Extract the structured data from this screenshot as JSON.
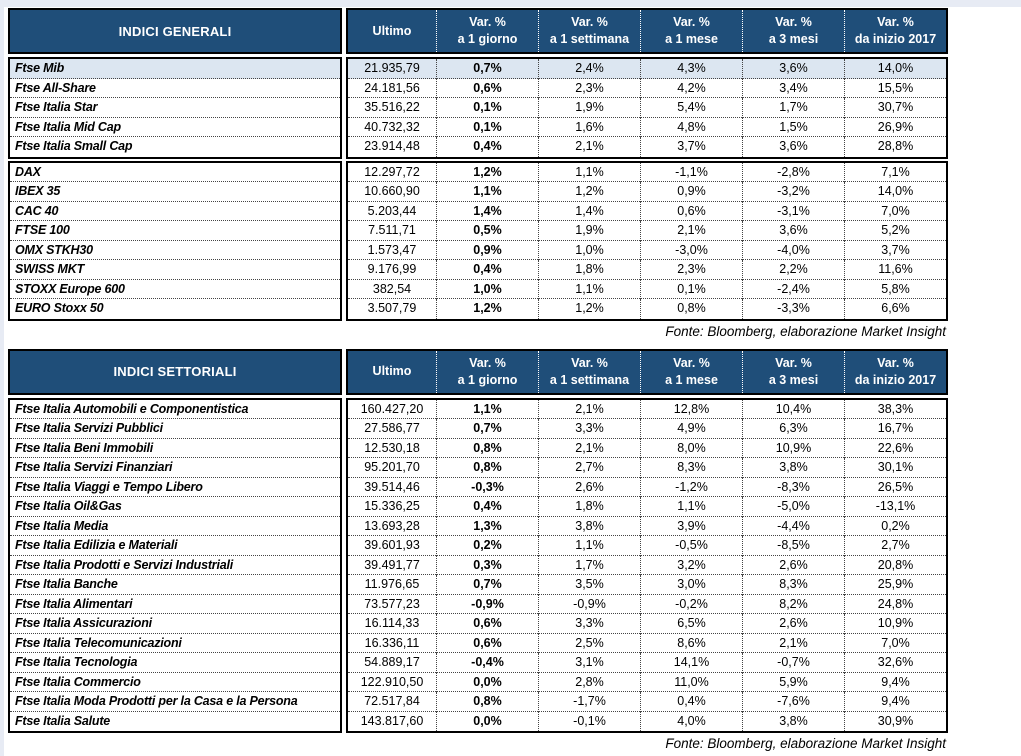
{
  "colors": {
    "header_bg": "#1F4E79",
    "header_text": "#FFFFFF",
    "highlight_bg": "#DCE6F1",
    "page_edge": "#E7EBF4",
    "border": "#000000"
  },
  "columns": [
    {
      "top": "Ultimo",
      "bottom": ""
    },
    {
      "top": "Var. %",
      "bottom": "a 1 giorno"
    },
    {
      "top": "Var. %",
      "bottom": "a 1 settimana"
    },
    {
      "top": "Var. %",
      "bottom": "a 1 mese"
    },
    {
      "top": "Var. %",
      "bottom": "a 3 mesi"
    },
    {
      "top": "Var. %",
      "bottom": "da inizio 2017"
    }
  ],
  "tables": [
    {
      "title": "INDICI GENERALI",
      "fonte": "Fonte: Bloomberg, elaborazione Market Insight",
      "sections": [
        {
          "rows": [
            {
              "label": "Ftse Mib",
              "highlight": true,
              "values": [
                "21.935,79",
                "0,7%",
                "2,4%",
                "4,3%",
                "3,6%",
                "14,0%"
              ]
            },
            {
              "label": "Ftse All-Share",
              "highlight": false,
              "values": [
                "24.181,56",
                "0,6%",
                "2,3%",
                "4,2%",
                "3,4%",
                "15,5%"
              ]
            },
            {
              "label": "Ftse Italia Star",
              "highlight": false,
              "values": [
                "35.516,22",
                "0,1%",
                "1,9%",
                "5,4%",
                "1,7%",
                "30,7%"
              ]
            },
            {
              "label": "Ftse Italia Mid Cap",
              "highlight": false,
              "values": [
                "40.732,32",
                "0,1%",
                "1,6%",
                "4,8%",
                "1,5%",
                "26,9%"
              ]
            },
            {
              "label": "Ftse Italia Small Cap",
              "highlight": false,
              "values": [
                "23.914,48",
                "0,4%",
                "2,1%",
                "3,7%",
                "3,6%",
                "28,8%"
              ]
            }
          ]
        },
        {
          "rows": [
            {
              "label": "DAX",
              "highlight": false,
              "values": [
                "12.297,72",
                "1,2%",
                "1,1%",
                "-1,1%",
                "-2,8%",
                "7,1%"
              ]
            },
            {
              "label": "IBEX 35",
              "highlight": false,
              "values": [
                "10.660,90",
                "1,1%",
                "1,2%",
                "0,9%",
                "-3,2%",
                "14,0%"
              ]
            },
            {
              "label": "CAC 40",
              "highlight": false,
              "values": [
                "5.203,44",
                "1,4%",
                "1,4%",
                "0,6%",
                "-3,1%",
                "7,0%"
              ]
            },
            {
              "label": "FTSE 100",
              "highlight": false,
              "values": [
                "7.511,71",
                "0,5%",
                "1,9%",
                "2,1%",
                "3,6%",
                "5,2%"
              ]
            },
            {
              "label": "OMX STKH30",
              "highlight": false,
              "values": [
                "1.573,47",
                "0,9%",
                "1,0%",
                "-3,0%",
                "-4,0%",
                "3,7%"
              ]
            },
            {
              "label": "SWISS MKT",
              "highlight": false,
              "values": [
                "9.176,99",
                "0,4%",
                "1,8%",
                "2,3%",
                "2,2%",
                "11,6%"
              ]
            },
            {
              "label": "STOXX Europe 600",
              "highlight": false,
              "values": [
                "382,54",
                "1,0%",
                "1,1%",
                "0,1%",
                "-2,4%",
                "5,8%"
              ]
            },
            {
              "label": "EURO Stoxx 50",
              "highlight": false,
              "values": [
                "3.507,79",
                "1,2%",
                "1,2%",
                "0,8%",
                "-3,3%",
                "6,6%"
              ]
            }
          ]
        }
      ]
    },
    {
      "title": "INDICI SETTORIALI",
      "fonte": "Fonte: Bloomberg, elaborazione Market Insight",
      "sections": [
        {
          "rows": [
            {
              "label": "Ftse Italia Automobili e Componentistica",
              "highlight": false,
              "values": [
                "160.427,20",
                "1,1%",
                "2,1%",
                "12,8%",
                "10,4%",
                "38,3%"
              ]
            },
            {
              "label": "Ftse Italia Servizi Pubblici",
              "highlight": false,
              "values": [
                "27.586,77",
                "0,7%",
                "3,3%",
                "4,9%",
                "6,3%",
                "16,7%"
              ]
            },
            {
              "label": "Ftse Italia Beni Immobili",
              "highlight": false,
              "values": [
                "12.530,18",
                "0,8%",
                "2,1%",
                "8,0%",
                "10,9%",
                "22,6%"
              ]
            },
            {
              "label": "Ftse Italia Servizi Finanziari",
              "highlight": false,
              "values": [
                "95.201,70",
                "0,8%",
                "2,7%",
                "8,3%",
                "3,8%",
                "30,1%"
              ]
            },
            {
              "label": "Ftse Italia Viaggi e Tempo Libero",
              "highlight": false,
              "values": [
                "39.514,46",
                "-0,3%",
                "2,6%",
                "-1,2%",
                "-8,3%",
                "26,5%"
              ]
            },
            {
              "label": "Ftse Italia Oil&Gas",
              "highlight": false,
              "values": [
                "15.336,25",
                "0,4%",
                "1,8%",
                "1,1%",
                "-5,0%",
                "-13,1%"
              ]
            },
            {
              "label": "Ftse Italia Media",
              "highlight": false,
              "values": [
                "13.693,28",
                "1,3%",
                "3,8%",
                "3,9%",
                "-4,4%",
                "0,2%"
              ]
            },
            {
              "label": "Ftse Italia Edilizia e Materiali",
              "highlight": false,
              "values": [
                "39.601,93",
                "0,2%",
                "1,1%",
                "-0,5%",
                "-8,5%",
                "2,7%"
              ]
            },
            {
              "label": "Ftse Italia Prodotti e Servizi Industriali",
              "highlight": false,
              "values": [
                "39.491,77",
                "0,3%",
                "1,7%",
                "3,2%",
                "2,6%",
                "20,8%"
              ]
            },
            {
              "label": "Ftse Italia Banche",
              "highlight": false,
              "values": [
                "11.976,65",
                "0,7%",
                "3,5%",
                "3,0%",
                "8,3%",
                "25,9%"
              ]
            },
            {
              "label": "Ftse Italia Alimentari",
              "highlight": false,
              "values": [
                "73.577,23",
                "-0,9%",
                "-0,9%",
                "-0,2%",
                "8,2%",
                "24,8%"
              ]
            },
            {
              "label": "Ftse Italia Assicurazioni",
              "highlight": false,
              "values": [
                "16.114,33",
                "0,6%",
                "3,3%",
                "6,5%",
                "2,6%",
                "10,9%"
              ]
            },
            {
              "label": "Ftse Italia Telecomunicazioni",
              "highlight": false,
              "values": [
                "16.336,11",
                "0,6%",
                "2,5%",
                "8,6%",
                "2,1%",
                "7,0%"
              ]
            },
            {
              "label": "Ftse Italia Tecnologia",
              "highlight": false,
              "values": [
                "54.889,17",
                "-0,4%",
                "3,1%",
                "14,1%",
                "-0,7%",
                "32,6%"
              ]
            },
            {
              "label": "Ftse Italia Commercio",
              "highlight": false,
              "values": [
                "122.910,50",
                "0,0%",
                "2,8%",
                "11,0%",
                "5,9%",
                "9,4%"
              ]
            },
            {
              "label": "Ftse Italia Moda Prodotti per la Casa e la Persona",
              "highlight": false,
              "values": [
                "72.517,84",
                "0,8%",
                "-1,7%",
                "0,4%",
                "-7,6%",
                "9,4%"
              ]
            },
            {
              "label": "Ftse Italia Salute",
              "highlight": false,
              "values": [
                "143.817,60",
                "0,0%",
                "-0,1%",
                "4,0%",
                "3,8%",
                "30,9%"
              ]
            }
          ]
        }
      ]
    }
  ]
}
